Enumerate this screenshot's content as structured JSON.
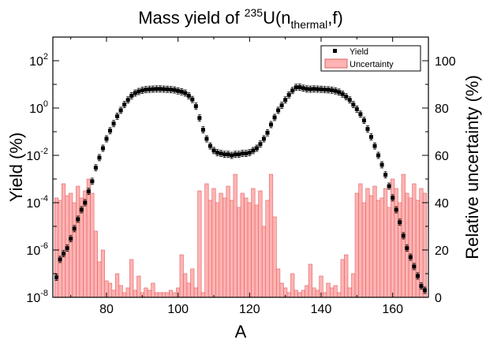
{
  "chart_data": {
    "type": "bar",
    "title_main": "Mass yield of ",
    "title_sup": "235",
    "title_mid": "U(n",
    "title_sub": "thermal",
    "title_end": ",f)",
    "xlabel": "A",
    "ylabel_left": "Yield (%)",
    "ylabel_right": "Relative uncertainty (%)",
    "xlim": [
      65,
      170
    ],
    "ylim_left": [
      1e-08,
      1000
    ],
    "ylim_right": [
      0,
      110
    ],
    "xticks": [
      "80",
      "100",
      "120",
      "140",
      "160"
    ],
    "xtick_values": [
      80,
      100,
      120,
      140,
      160
    ],
    "yticks_left": [
      {
        "value": 1e-08,
        "base": "10",
        "exp": "-8"
      },
      {
        "value": 1e-06,
        "base": "10",
        "exp": "-6"
      },
      {
        "value": 0.0001,
        "base": "10",
        "exp": "-4"
      },
      {
        "value": 0.01,
        "base": "10",
        "exp": "-2"
      },
      {
        "value": 1,
        "base": "10",
        "exp": "0"
      },
      {
        "value": 100,
        "base": "10",
        "exp": "2"
      }
    ],
    "yticks_right": [
      "0",
      "20",
      "40",
      "60",
      "80",
      "100"
    ],
    "ytick_values_right": [
      0,
      20,
      40,
      60,
      80,
      100
    ],
    "legend": {
      "position": "top-right",
      "entries": [
        "Yield",
        "Uncertainty"
      ]
    },
    "colors": {
      "uncertainty_fill": "#ffb3b3",
      "uncertainty_edge": "#e06060",
      "yield": "#000000"
    },
    "yield_series": {
      "name": "Yield",
      "x": [
        66,
        67,
        68,
        69,
        70,
        71,
        72,
        73,
        74,
        75,
        76,
        77,
        78,
        79,
        80,
        81,
        82,
        83,
        84,
        85,
        86,
        87,
        88,
        89,
        90,
        91,
        92,
        93,
        94,
        95,
        96,
        97,
        98,
        99,
        100,
        101,
        102,
        103,
        104,
        105,
        106,
        107,
        108,
        109,
        110,
        111,
        112,
        113,
        114,
        115,
        116,
        117,
        118,
        119,
        120,
        121,
        122,
        123,
        124,
        125,
        126,
        127,
        128,
        129,
        130,
        131,
        132,
        133,
        134,
        135,
        136,
        137,
        138,
        139,
        140,
        141,
        142,
        143,
        144,
        145,
        146,
        147,
        148,
        149,
        150,
        151,
        152,
        153,
        154,
        155,
        156,
        157,
        158,
        159,
        160,
        161,
        162,
        163,
        164,
        165,
        166,
        167,
        168,
        169
      ],
      "values": [
        7e-08,
        4e-07,
        7e-07,
        1.2e-06,
        3e-06,
        8e-06,
        2e-05,
        5e-05,
        0.0001,
        0.0003,
        0.0008,
        0.003,
        0.008,
        0.02,
        0.05,
        0.11,
        0.22,
        0.45,
        0.8,
        1.4,
        2.2,
        3.3,
        4.3,
        5.0,
        5.6,
        6.0,
        6.2,
        6.3,
        6.4,
        6.4,
        6.3,
        6.2,
        6.0,
        5.8,
        5.3,
        4.9,
        4.3,
        3.3,
        2.3,
        1.2,
        0.38,
        0.12,
        0.05,
        0.025,
        0.016,
        0.013,
        0.012,
        0.011,
        0.011,
        0.01,
        0.011,
        0.011,
        0.012,
        0.012,
        0.013,
        0.016,
        0.02,
        0.03,
        0.05,
        0.09,
        0.2,
        0.4,
        0.8,
        1.3,
        2.2,
        3.6,
        5.5,
        7.5,
        7.6,
        6.9,
        6.4,
        6.3,
        6.4,
        6.3,
        6.2,
        6.0,
        5.9,
        5.7,
        5.3,
        4.7,
        3.9,
        3.0,
        2.2,
        1.4,
        0.9,
        0.55,
        0.3,
        0.13,
        0.06,
        0.025,
        0.01,
        0.004,
        0.0015,
        0.0005,
        0.00016,
        5e-05,
        1.5e-05,
        4e-06,
        1.2e-06,
        5e-07,
        2e-07,
        8e-08,
        3e-08,
        2e-08
      ]
    },
    "uncertainty_series": {
      "name": "Uncertainty",
      "x": [
        66,
        67,
        68,
        69,
        70,
        71,
        72,
        73,
        74,
        75,
        76,
        77,
        78,
        79,
        80,
        81,
        82,
        83,
        84,
        85,
        86,
        87,
        88,
        89,
        90,
        91,
        92,
        93,
        94,
        95,
        96,
        97,
        98,
        99,
        100,
        101,
        102,
        103,
        104,
        105,
        106,
        107,
        108,
        109,
        110,
        111,
        112,
        113,
        114,
        115,
        116,
        117,
        118,
        119,
        120,
        121,
        122,
        123,
        124,
        125,
        126,
        127,
        128,
        129,
        130,
        131,
        132,
        133,
        134,
        135,
        136,
        137,
        138,
        139,
        140,
        141,
        142,
        143,
        144,
        145,
        146,
        147,
        148,
        149,
        150,
        151,
        152,
        153,
        154,
        155,
        156,
        157,
        158,
        159,
        160,
        161,
        162,
        163,
        164,
        165,
        166,
        167,
        168,
        169
      ],
      "values": [
        42,
        41,
        48,
        43,
        44,
        40,
        47,
        42,
        45,
        50,
        44,
        28,
        15,
        20,
        7,
        6,
        3,
        10,
        5,
        2,
        4,
        16,
        3,
        9,
        2,
        4,
        3,
        6,
        2,
        2,
        2,
        2,
        3,
        2,
        4,
        18,
        10,
        6,
        12,
        4,
        45,
        2,
        48,
        41,
        46,
        40,
        44,
        42,
        47,
        41,
        52,
        38,
        44,
        42,
        40,
        46,
        39,
        45,
        30,
        41,
        52,
        34,
        12,
        6,
        4,
        2,
        10,
        3,
        2,
        3,
        5,
        14,
        4,
        3,
        9,
        2,
        6,
        4,
        5,
        2,
        16,
        18,
        4,
        10,
        44,
        48,
        40,
        46,
        43,
        47,
        41,
        42,
        46,
        38,
        50,
        46,
        40,
        52,
        44,
        42,
        48,
        41,
        46,
        44
      ]
    }
  }
}
